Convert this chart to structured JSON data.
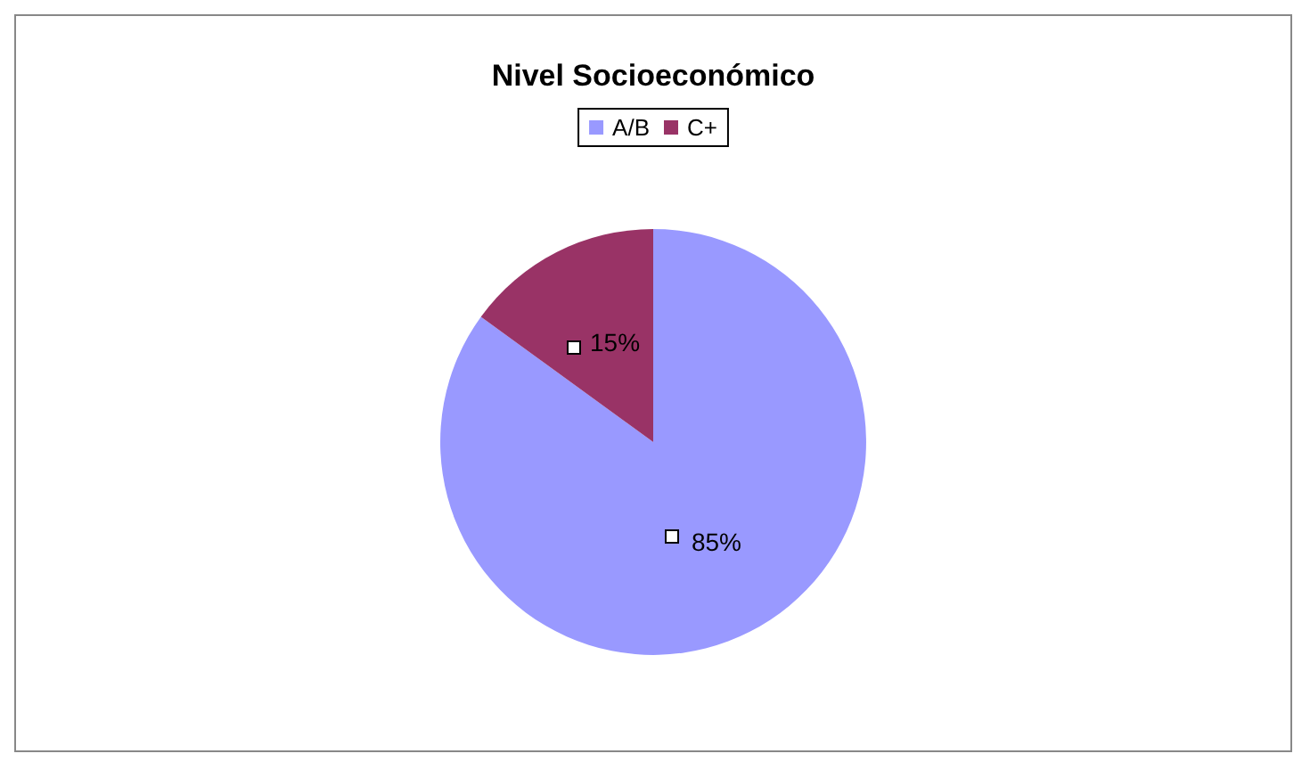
{
  "chart_data": {
    "type": "pie",
    "title": "Nivel Socioeconómico",
    "categories": [
      "A/B",
      "C+"
    ],
    "values": [
      85,
      15
    ],
    "colors": [
      "#9999ff",
      "#993366"
    ],
    "value_labels": [
      "85%",
      "15%"
    ],
    "legend": "top"
  }
}
